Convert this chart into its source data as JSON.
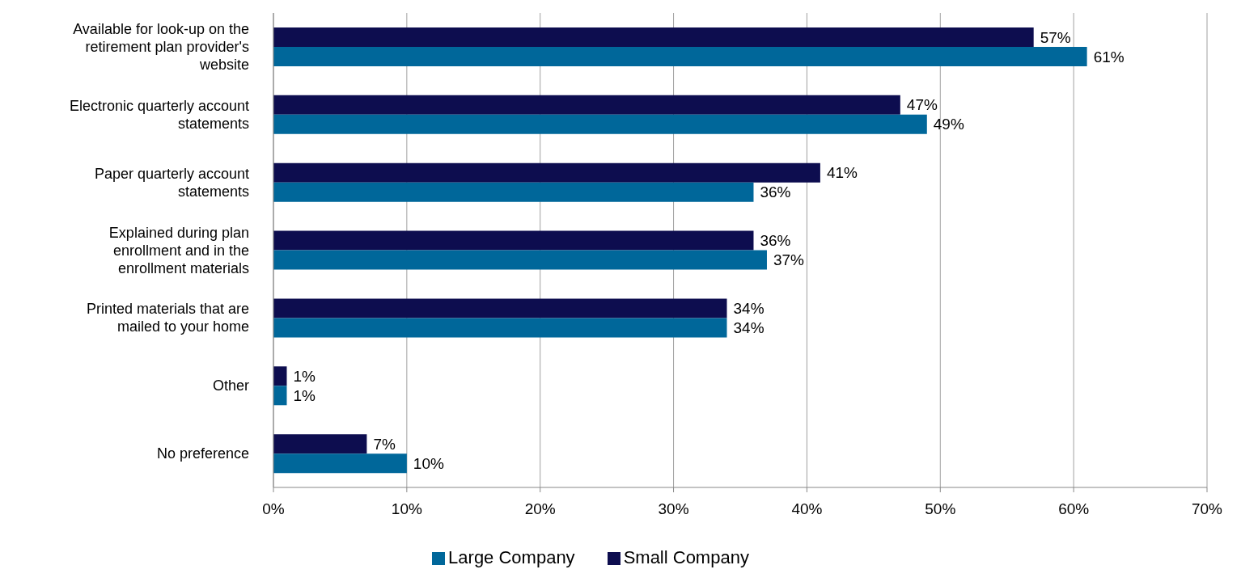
{
  "chart_data": {
    "type": "bar",
    "orientation": "horizontal",
    "categories": [
      "Available for look-up on the retirement plan provider's website",
      "Electronic quarterly account statements",
      "Paper quarterly account statements",
      "Explained during plan enrollment and in the enrollment materials",
      "Printed materials that are mailed to your home",
      "Other",
      "No preference"
    ],
    "series": [
      {
        "name": "Small Company",
        "color": "#0d0d4f",
        "values": [
          57,
          47,
          41,
          36,
          34,
          1,
          7
        ],
        "value_labels": [
          "57%",
          "47%",
          "41%",
          "36%",
          "34%",
          "1%",
          "7%"
        ]
      },
      {
        "name": "Large Company",
        "color": "#00679a",
        "values": [
          61,
          49,
          36,
          37,
          34,
          1,
          10
        ],
        "value_labels": [
          "61%",
          "49%",
          "36%",
          "37%",
          "34%",
          "1%",
          "10%"
        ]
      }
    ],
    "xlim": [
      0,
      70
    ],
    "xticks": [
      {
        "value": 0,
        "label": "0%"
      },
      {
        "value": 10,
        "label": "10%"
      },
      {
        "value": 20,
        "label": "20%"
      },
      {
        "value": 30,
        "label": "30%"
      },
      {
        "value": 40,
        "label": "40%"
      },
      {
        "value": 50,
        "label": "50%"
      },
      {
        "value": 60,
        "label": "60%"
      },
      {
        "value": 70,
        "label": "70%"
      }
    ],
    "grid": "x",
    "legend": "bottom"
  }
}
